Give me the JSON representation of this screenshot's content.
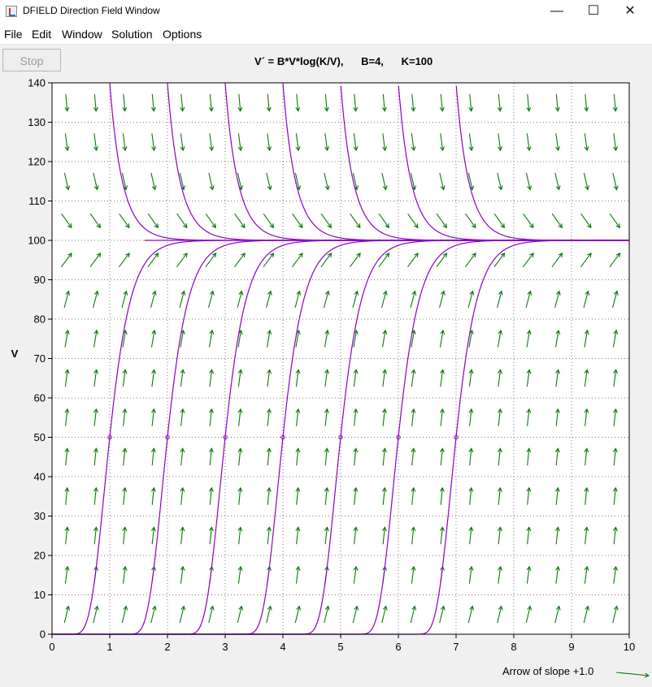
{
  "window": {
    "title": "DFIELD Direction Field Window",
    "minimize_glyph": "—",
    "maximize_glyph": "☐",
    "close_glyph": "✕"
  },
  "menu": {
    "items": [
      "File",
      "Edit",
      "Window",
      "Solution",
      "Options"
    ]
  },
  "toolbar": {
    "stop_label": "Stop",
    "equation_text": "V´ = B*V*log(K/V),      B=4,      K=100"
  },
  "footer": {
    "slope_label": "Arrow of slope +1.0"
  },
  "colors": {
    "field_arrows": "#0a7a0a",
    "solutions": "#8a00c8",
    "grid": "#7a7a7a"
  },
  "chart_data": {
    "type": "direction-field",
    "equation": "V' = B*V*log(K/V)",
    "parameters": {
      "B": 4,
      "K": 100
    },
    "xlabel": "",
    "ylabel": "V",
    "xlim": [
      0,
      10
    ],
    "ylim": [
      0,
      140
    ],
    "x_ticks": [
      "0",
      "1",
      "2",
      "3",
      "4",
      "5",
      "6",
      "7",
      "8",
      "9",
      "10"
    ],
    "y_ticks": [
      "0",
      "10",
      "20",
      "30",
      "40",
      "50",
      "60",
      "70",
      "80",
      "90",
      "100",
      "110",
      "120",
      "130",
      "140"
    ],
    "grid": true,
    "initial_points": [
      {
        "x": 1,
        "y": 50
      },
      {
        "x": 2,
        "y": 50
      },
      {
        "x": 3,
        "y": 50
      },
      {
        "x": 4,
        "y": 50
      },
      {
        "x": 5,
        "y": 50
      },
      {
        "x": 6,
        "y": 50
      },
      {
        "x": 7,
        "y": 50
      }
    ],
    "equilibrium": 100
  }
}
